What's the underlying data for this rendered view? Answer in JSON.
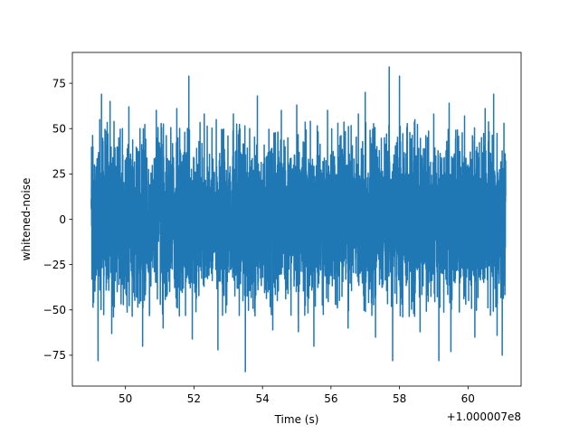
{
  "chart_data": {
    "type": "line",
    "title": "",
    "xlabel": "Time (s)",
    "ylabel": "whitened-noise",
    "x_offset_label": "+1.000007e8",
    "xlim": [
      48.45,
      61.55
    ],
    "ylim": [
      -92,
      92
    ],
    "x_ticks": [
      50,
      52,
      54,
      56,
      58,
      60
    ],
    "x_tick_labels": [
      "50",
      "52",
      "54",
      "56",
      "58",
      "60"
    ],
    "y_ticks": [
      -75,
      -50,
      -25,
      0,
      25,
      50,
      75
    ],
    "y_tick_labels": [
      "−75",
      "−50",
      "−25",
      "0",
      "25",
      "50",
      "75"
    ],
    "grid": false,
    "series": [
      {
        "color": "#1f77b4",
        "x_start": 49.0,
        "x_end": 61.1,
        "noise_sigma": 20,
        "envelope_peaks": [
          {
            "x": 49.05,
            "y": 40
          },
          {
            "x": 49.25,
            "y": 55
          },
          {
            "x": 49.3,
            "y": 69
          },
          {
            "x": 49.2,
            "y": -78
          },
          {
            "x": 49.55,
            "y": 65
          },
          {
            "x": 49.6,
            "y": -63
          },
          {
            "x": 50.1,
            "y": 62
          },
          {
            "x": 50.5,
            "y": -70
          },
          {
            "x": 50.9,
            "y": 60
          },
          {
            "x": 51.1,
            "y": -60
          },
          {
            "x": 51.5,
            "y": 61
          },
          {
            "x": 51.85,
            "y": 79
          },
          {
            "x": 51.95,
            "y": -66
          },
          {
            "x": 52.3,
            "y": 58
          },
          {
            "x": 52.65,
            "y": 55
          },
          {
            "x": 52.7,
            "y": -72
          },
          {
            "x": 53.15,
            "y": 58
          },
          {
            "x": 53.5,
            "y": -84
          },
          {
            "x": 53.85,
            "y": 68
          },
          {
            "x": 54.3,
            "y": -61
          },
          {
            "x": 54.55,
            "y": 60
          },
          {
            "x": 55.0,
            "y": 63
          },
          {
            "x": 55.05,
            "y": -62
          },
          {
            "x": 55.5,
            "y": -70
          },
          {
            "x": 55.9,
            "y": 60
          },
          {
            "x": 56.2,
            "y": 53
          },
          {
            "x": 56.5,
            "y": -60
          },
          {
            "x": 56.8,
            "y": 58
          },
          {
            "x": 57.0,
            "y": 70
          },
          {
            "x": 57.3,
            "y": -65
          },
          {
            "x": 57.7,
            "y": 84
          },
          {
            "x": 57.8,
            "y": -78
          },
          {
            "x": 58.0,
            "y": 79
          },
          {
            "x": 58.45,
            "y": 55
          },
          {
            "x": 58.6,
            "y": -62
          },
          {
            "x": 59.0,
            "y": 58
          },
          {
            "x": 59.15,
            "y": -78
          },
          {
            "x": 59.45,
            "y": 64
          },
          {
            "x": 59.5,
            "y": -73
          },
          {
            "x": 59.9,
            "y": 57
          },
          {
            "x": 60.2,
            "y": -65
          },
          {
            "x": 60.5,
            "y": 61
          },
          {
            "x": 60.75,
            "y": 69
          },
          {
            "x": 60.85,
            "y": -64
          },
          {
            "x": 61.05,
            "y": 53
          },
          {
            "x": 61.0,
            "y": -75
          }
        ]
      }
    ]
  }
}
